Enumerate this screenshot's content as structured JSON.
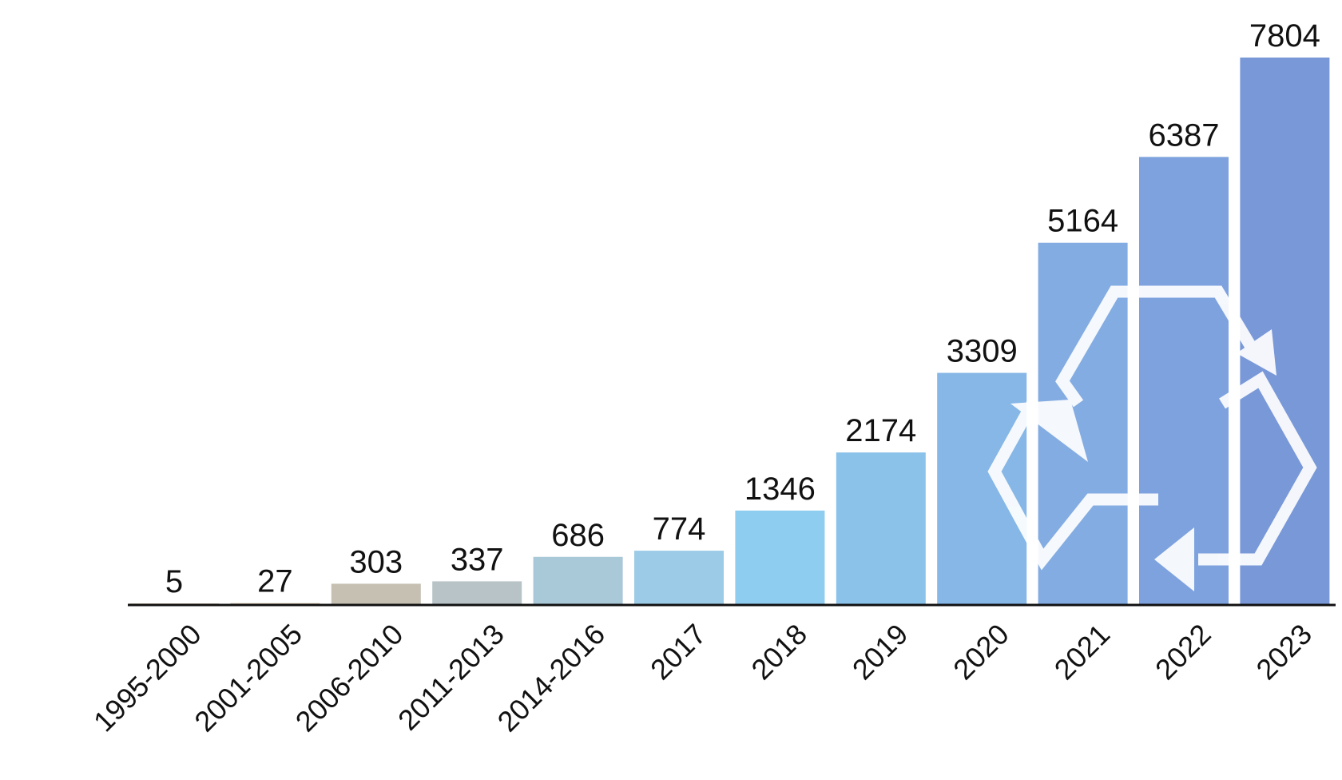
{
  "chart_data": {
    "type": "bar",
    "title": "",
    "xlabel": "",
    "ylabel": "",
    "categories": [
      "1995-2000",
      "2001-2005",
      "2006-2010",
      "2011-2013",
      "2014-2016",
      "2017",
      "2018",
      "2019",
      "2020",
      "2021",
      "2022",
      "2023"
    ],
    "values": [
      5,
      27,
      303,
      337,
      686,
      774,
      1346,
      2174,
      3309,
      5164,
      6387,
      7804
    ],
    "ylim": [
      0,
      8500
    ],
    "grid": false,
    "legend": "none",
    "bar_colors": [
      "#d8c9b5",
      "#d6c6b2",
      "#c6c0b2",
      "#b7c3c6",
      "#a9c8d8",
      "#9ccbe8",
      "#8fcdf0",
      "#8ac2ea",
      "#86b7e6",
      "#83ace2",
      "#7ea2de",
      "#7998d8"
    ],
    "axis_color": "#111111",
    "watermark_icon": "recycle-icon",
    "watermark_color": "#ffffff"
  }
}
